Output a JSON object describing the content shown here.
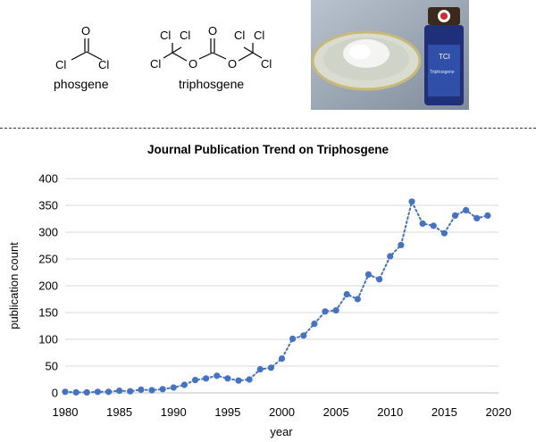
{
  "molecules": {
    "phosgene": {
      "name": "phosgene",
      "atoms": {
        "o": "O",
        "cl_left": "Cl",
        "cl_right": "Cl"
      }
    },
    "triphosgene": {
      "name": "triphosgene",
      "atoms": {
        "o_carbonyl": "O",
        "o_left": "O",
        "o_right": "O",
        "cl1": "Cl",
        "cl2": "Cl",
        "cl3": "Cl",
        "cl4": "Cl",
        "cl5": "Cl",
        "cl6": "Cl"
      }
    }
  },
  "photo": {
    "bottle_label": "TCI",
    "bottle_text": "Triphosgene"
  },
  "colors": {
    "series": "#4472c4",
    "grid": "#d9d9d9",
    "axis": "#bfbfbf"
  },
  "chart_data": {
    "type": "line",
    "title": "Journal Publication Trend on Triphosgene",
    "xlabel": "year",
    "ylabel": "publication count",
    "xlim": [
      1980,
      2020
    ],
    "ylim": [
      0,
      400
    ],
    "xticks": [
      1980,
      1985,
      1990,
      1995,
      2000,
      2005,
      2010,
      2015,
      2020
    ],
    "yticks": [
      0,
      50,
      100,
      150,
      200,
      250,
      300,
      350,
      400
    ],
    "grid": "horizontal",
    "line_style": "dotted",
    "marker": "circle",
    "x": [
      1980,
      1981,
      1982,
      1983,
      1984,
      1985,
      1986,
      1987,
      1988,
      1989,
      1990,
      1991,
      1992,
      1993,
      1994,
      1995,
      1996,
      1997,
      1998,
      1999,
      2000,
      2001,
      2002,
      2003,
      2004,
      2005,
      2006,
      2007,
      2008,
      2009,
      2010,
      2011,
      2012,
      2013,
      2014,
      2015,
      2016,
      2017,
      2018,
      2019
    ],
    "y": [
      2,
      1,
      1,
      2,
      2,
      4,
      3,
      6,
      5,
      7,
      10,
      15,
      24,
      27,
      32,
      27,
      23,
      25,
      44,
      47,
      64,
      101,
      107,
      129,
      152,
      154,
      184,
      175,
      221,
      212,
      255,
      276,
      357,
      316,
      312,
      298,
      331,
      341,
      326,
      331
    ]
  }
}
